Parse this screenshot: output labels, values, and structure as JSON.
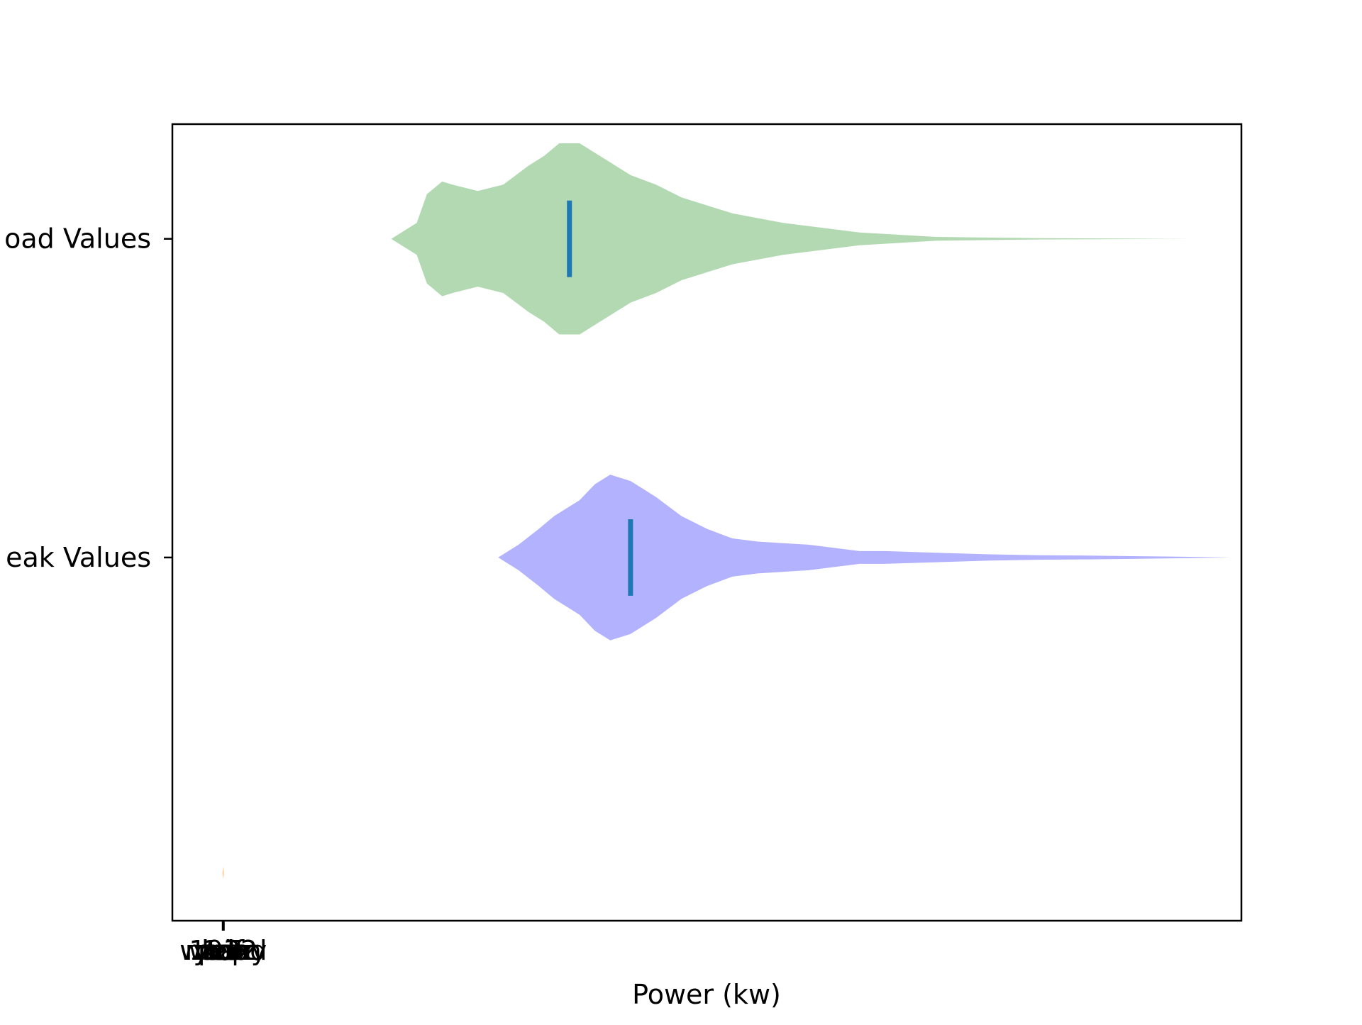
{
  "chart_data": {
    "type": "violin",
    "orientation": "horizontal",
    "xlabel": "Power (kw)",
    "ylabel": "",
    "title": "",
    "y_ticks": [
      {
        "label": "Load Values",
        "visible_label": "oad Values"
      },
      {
        "label": "Peak Values",
        "visible_label": "eak Values"
      }
    ],
    "x_tick_labels": [
      "cdf",
      "wkday",
      "wkend",
      "mean",
      "pop",
      "year",
      "max",
      "min",
      "1932",
      "1.5"
    ],
    "x_tick_value": 0,
    "x_axis_range": [
      -1,
      20
    ],
    "y_axis_range": [
      0.5,
      3.0
    ],
    "series": [
      {
        "name": "Load Values",
        "color": "#008000",
        "alpha": 0.3,
        "position": 2.64,
        "mean": 6.8,
        "extent": [
          3.3,
          19.0
        ],
        "profile_x": [
          3.3,
          3.5,
          3.8,
          4.0,
          4.3,
          4.5,
          5.0,
          5.5,
          6.0,
          6.3,
          6.6,
          7.0,
          7.5,
          8.0,
          8.5,
          9.0,
          10.0,
          11.0,
          12.5,
          14.0,
          16.0,
          19.0
        ],
        "profile_width": [
          0.0,
          0.02,
          0.05,
          0.14,
          0.18,
          0.17,
          0.15,
          0.17,
          0.23,
          0.26,
          0.3,
          0.3,
          0.25,
          0.2,
          0.17,
          0.13,
          0.08,
          0.05,
          0.02,
          0.006,
          0.002,
          0.0
        ]
      },
      {
        "name": "Peak Values",
        "color": "#0000FF",
        "alpha": 0.3,
        "position": 1.64,
        "mean": 8.0,
        "extent": [
          5.4,
          19.8
        ],
        "profile_x": [
          5.4,
          5.8,
          6.2,
          6.5,
          7.0,
          7.3,
          7.6,
          8.0,
          8.5,
          9.0,
          9.5,
          10.0,
          10.5,
          11.0,
          11.5,
          12.0,
          12.5,
          13.0,
          14.0,
          15.0,
          16.0,
          17.0,
          18.0,
          19.0,
          19.8
        ],
        "profile_width": [
          0.0,
          0.04,
          0.09,
          0.13,
          0.18,
          0.23,
          0.26,
          0.24,
          0.19,
          0.13,
          0.09,
          0.06,
          0.05,
          0.045,
          0.04,
          0.03,
          0.02,
          0.02,
          0.015,
          0.01,
          0.007,
          0.006,
          0.004,
          0.002,
          0.0
        ]
      },
      {
        "name": "",
        "color": "#FF7F0E",
        "alpha": 0.3,
        "position": 0.65,
        "mean": 0,
        "extent": [
          -0.02,
          0.02
        ],
        "profile_x": [
          -0.02,
          0.0,
          0.02
        ],
        "profile_width": [
          0.0,
          0.02,
          0.0
        ]
      }
    ],
    "mean_line_color": "#1F77B4",
    "mean_line_halfheight": 0.12,
    "grid": false,
    "legend": "none"
  }
}
